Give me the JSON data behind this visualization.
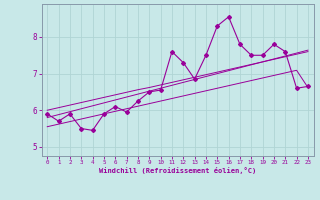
{
  "xlabel": "Windchill (Refroidissement éolien,°C)",
  "x_data": [
    0,
    1,
    2,
    3,
    4,
    5,
    6,
    7,
    8,
    9,
    10,
    11,
    12,
    13,
    14,
    15,
    16,
    17,
    18,
    19,
    20,
    21,
    22,
    23
  ],
  "y_main": [
    5.9,
    5.7,
    5.9,
    5.5,
    5.45,
    5.9,
    6.1,
    5.95,
    6.25,
    6.5,
    6.55,
    7.6,
    7.3,
    6.85,
    7.5,
    8.3,
    8.55,
    7.8,
    7.5,
    7.5,
    7.8,
    7.6,
    6.6,
    6.65
  ],
  "y_upper": [
    6.0,
    6.07,
    6.14,
    6.21,
    6.28,
    6.35,
    6.42,
    6.49,
    6.56,
    6.62,
    6.69,
    6.76,
    6.83,
    6.9,
    6.97,
    7.04,
    7.11,
    7.18,
    7.25,
    7.32,
    7.39,
    7.46,
    7.53,
    7.6
  ],
  "y_middle": [
    5.8,
    5.88,
    5.96,
    6.04,
    6.12,
    6.2,
    6.28,
    6.36,
    6.44,
    6.52,
    6.6,
    6.68,
    6.76,
    6.84,
    6.92,
    7.0,
    7.08,
    7.16,
    7.24,
    7.32,
    7.4,
    7.48,
    7.56,
    7.64
  ],
  "y_lower": [
    5.55,
    5.62,
    5.69,
    5.76,
    5.83,
    5.9,
    5.97,
    6.04,
    6.11,
    6.18,
    6.25,
    6.32,
    6.39,
    6.46,
    6.53,
    6.6,
    6.67,
    6.74,
    6.81,
    6.88,
    6.95,
    7.02,
    7.09,
    6.62
  ],
  "line_color": "#990099",
  "bg_color": "#c8e8e8",
  "grid_color": "#aacccc",
  "ylim": [
    4.75,
    8.9
  ],
  "xlim": [
    -0.5,
    23.5
  ],
  "yticks": [
    5,
    6,
    7,
    8
  ],
  "xticks": [
    0,
    1,
    2,
    3,
    4,
    5,
    6,
    7,
    8,
    9,
    10,
    11,
    12,
    13,
    14,
    15,
    16,
    17,
    18,
    19,
    20,
    21,
    22,
    23
  ]
}
